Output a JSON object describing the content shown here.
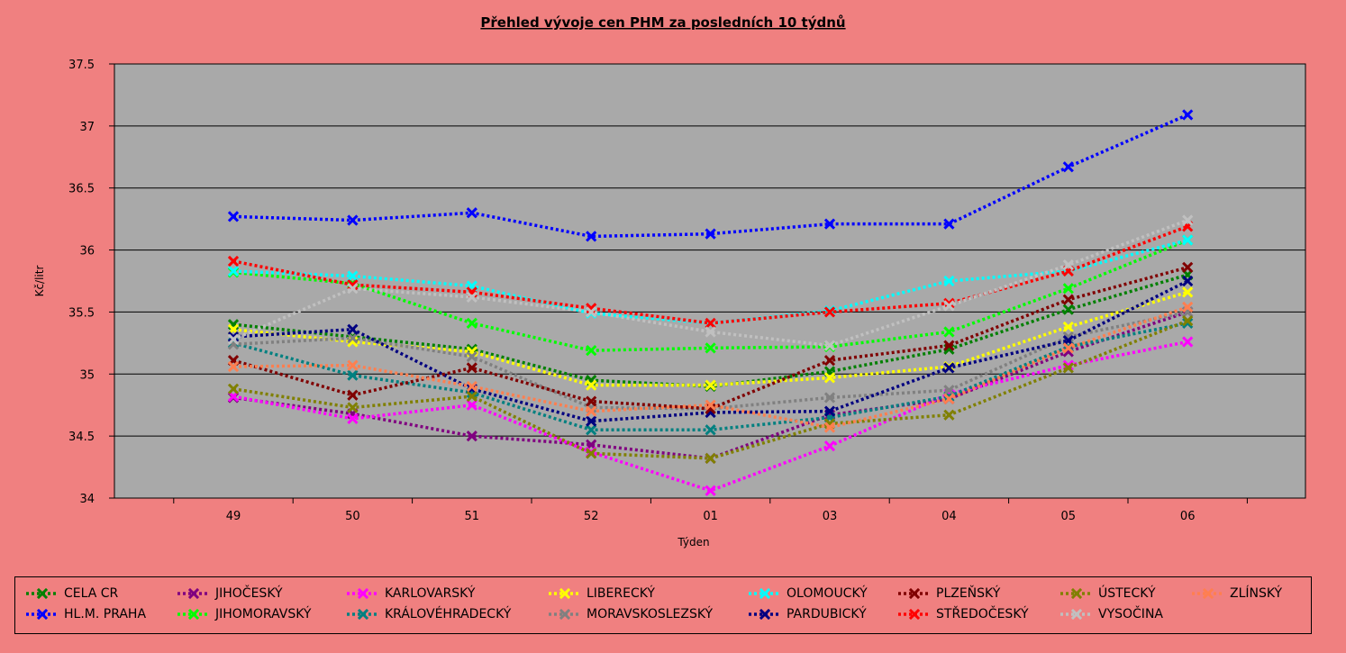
{
  "chart_data": {
    "type": "line",
    "title": "Přehled vývoje cen PHM za posledních 10 týdnů",
    "xlabel": "Týden",
    "ylabel": "Kč/litr",
    "ylim": [
      34,
      37.5
    ],
    "yticks": [
      "34",
      "34.5",
      "35",
      "35.5",
      "36",
      "36.5",
      "37",
      "37.5"
    ],
    "categories": [
      "49",
      "50",
      "51",
      "52",
      "01",
      "03",
      "04",
      "05",
      "06"
    ],
    "grid": true,
    "legend_position": "bottom",
    "series": [
      {
        "name": "CELA CR",
        "color": "#008000",
        "values": [
          35.4,
          35.3,
          35.2,
          34.95,
          34.9,
          35.02,
          35.2,
          35.52,
          35.8
        ]
      },
      {
        "name": "HL.M. PRAHA",
        "color": "#0000ff",
        "values": [
          36.27,
          36.24,
          36.3,
          36.11,
          36.13,
          36.21,
          36.21,
          36.67,
          37.09
        ]
      },
      {
        "name": "JIHOČESKÝ",
        "color": "#800080",
        "values": [
          34.81,
          34.68,
          34.5,
          34.43,
          34.32,
          34.67,
          34.8,
          35.18,
          35.5
        ]
      },
      {
        "name": "JIHOMORAVSKÝ",
        "color": "#00ff00",
        "values": [
          35.82,
          35.73,
          35.41,
          35.19,
          35.21,
          35.22,
          35.34,
          35.69,
          36.08
        ]
      },
      {
        "name": "KARLOVARSKÝ",
        "color": "#ff00ff",
        "values": [
          34.82,
          34.64,
          34.75,
          34.37,
          34.06,
          34.42,
          34.84,
          35.07,
          35.26
        ]
      },
      {
        "name": "KRÁLOVÉHRADECKÝ",
        "color": "#008080",
        "values": [
          35.25,
          34.99,
          34.85,
          34.55,
          34.55,
          34.65,
          34.82,
          35.22,
          35.41
        ]
      },
      {
        "name": "LIBERECKÝ",
        "color": "#ffff00",
        "values": [
          35.36,
          35.26,
          35.18,
          34.91,
          34.91,
          34.97,
          35.06,
          35.38,
          35.66
        ]
      },
      {
        "name": "MORAVSKOSLEZSKÝ",
        "color": "#808080",
        "values": [
          35.24,
          35.29,
          35.14,
          34.73,
          34.72,
          34.81,
          34.87,
          35.3,
          35.5
        ]
      },
      {
        "name": "OLOMOUCKÝ",
        "color": "#00ffff",
        "values": [
          35.83,
          35.79,
          35.71,
          35.49,
          35.41,
          35.51,
          35.75,
          35.83,
          36.08
        ]
      },
      {
        "name": "PARDUBICKÝ",
        "color": "#000080",
        "values": [
          35.3,
          35.36,
          34.88,
          34.62,
          34.69,
          34.7,
          35.05,
          35.27,
          35.75
        ]
      },
      {
        "name": "PLZEŇSKÝ",
        "color": "#800000",
        "values": [
          35.11,
          34.83,
          35.05,
          34.78,
          34.72,
          35.11,
          35.23,
          35.6,
          35.86
        ]
      },
      {
        "name": "STŘEDOČESKÝ",
        "color": "#ff0000",
        "values": [
          35.91,
          35.72,
          35.66,
          35.53,
          35.41,
          35.5,
          35.57,
          35.83,
          36.19
        ]
      },
      {
        "name": "ÚSTECKÝ",
        "color": "#808000",
        "values": [
          34.88,
          34.73,
          34.82,
          34.36,
          34.32,
          34.6,
          34.67,
          35.05,
          35.43
        ]
      },
      {
        "name": "VYSOČINA",
        "color": "#c0c0c0",
        "values": [
          35.28,
          35.69,
          35.62,
          35.5,
          35.34,
          35.23,
          35.55,
          35.88,
          36.24
        ]
      },
      {
        "name": "ZLÍNSKÝ",
        "color": "#ff7f50",
        "values": [
          35.06,
          35.07,
          34.9,
          34.7,
          34.75,
          34.57,
          34.8,
          35.21,
          35.54
        ]
      }
    ]
  }
}
